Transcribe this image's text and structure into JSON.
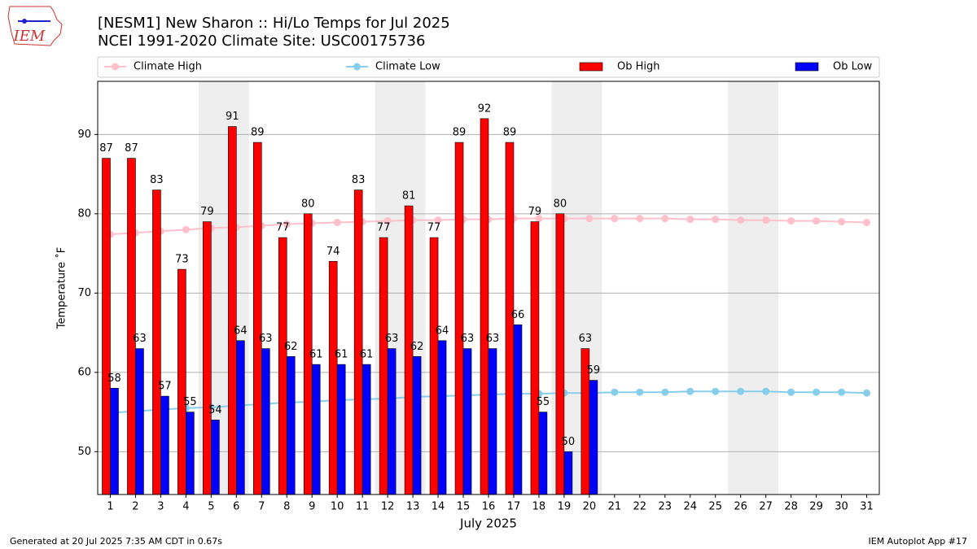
{
  "chart_data": {
    "type": "bar",
    "title": "[NESM1] New Sharon :: Hi/Lo Temps for Jul 2025",
    "subtitle": "NCEI 1991-2020 Climate Site: USC00175736",
    "y_label": "Temperature ˚F",
    "x_label": "July 2025",
    "logo_text": "IEM",
    "footer_left": "Generated at 20 Jul 2025 7:35 AM CDT in 0.67s",
    "footer_right": "IEM Autoplot App #17",
    "categories": [
      "1",
      "2",
      "3",
      "4",
      "5",
      "6",
      "7",
      "8",
      "9",
      "10",
      "11",
      "12",
      "13",
      "14",
      "15",
      "16",
      "17",
      "18",
      "19",
      "20",
      "21",
      "22",
      "23",
      "24",
      "25",
      "26",
      "27",
      "28",
      "29",
      "30",
      "31"
    ],
    "ylim": [
      44.6,
      96.7
    ],
    "yticks": [
      50,
      60,
      70,
      80,
      90
    ],
    "grid": true,
    "series": [
      {
        "name": "Climate High",
        "type": "line",
        "color": "#ffc0cb",
        "values": [
          77.4,
          77.6,
          77.8,
          78.0,
          78.2,
          78.3,
          78.5,
          78.7,
          78.8,
          78.9,
          79.0,
          79.1,
          79.2,
          79.2,
          79.3,
          79.3,
          79.4,
          79.4,
          79.4,
          79.4,
          79.4,
          79.4,
          79.4,
          79.3,
          79.3,
          79.2,
          79.2,
          79.1,
          79.1,
          79.0,
          78.9
        ]
      },
      {
        "name": "Climate Low",
        "type": "line",
        "color": "#87ceeb",
        "values": [
          54.9,
          55.1,
          55.3,
          55.5,
          55.6,
          55.8,
          56.0,
          56.2,
          56.3,
          56.5,
          56.6,
          56.7,
          56.9,
          57.0,
          57.1,
          57.2,
          57.3,
          57.3,
          57.4,
          57.4,
          57.5,
          57.5,
          57.5,
          57.6,
          57.6,
          57.6,
          57.6,
          57.5,
          57.5,
          57.5,
          57.4
        ]
      },
      {
        "name": "Ob High",
        "type": "bar",
        "color": "#ff0000",
        "values": [
          87,
          87,
          83,
          73,
          79,
          91,
          89,
          77,
          80,
          74,
          83,
          77,
          81,
          77,
          89,
          92,
          89,
          79,
          80,
          63,
          null,
          null,
          null,
          null,
          null,
          null,
          null,
          null,
          null,
          null,
          null
        ]
      },
      {
        "name": "Ob Low",
        "type": "bar",
        "color": "#0000ff",
        "values": [
          58,
          63,
          57,
          55,
          54,
          64,
          63,
          62,
          61,
          61,
          61,
          63,
          62,
          64,
          63,
          63,
          66,
          55,
          50,
          59,
          null,
          null,
          null,
          null,
          null,
          null,
          null,
          null,
          null,
          null,
          null
        ]
      }
    ]
  }
}
